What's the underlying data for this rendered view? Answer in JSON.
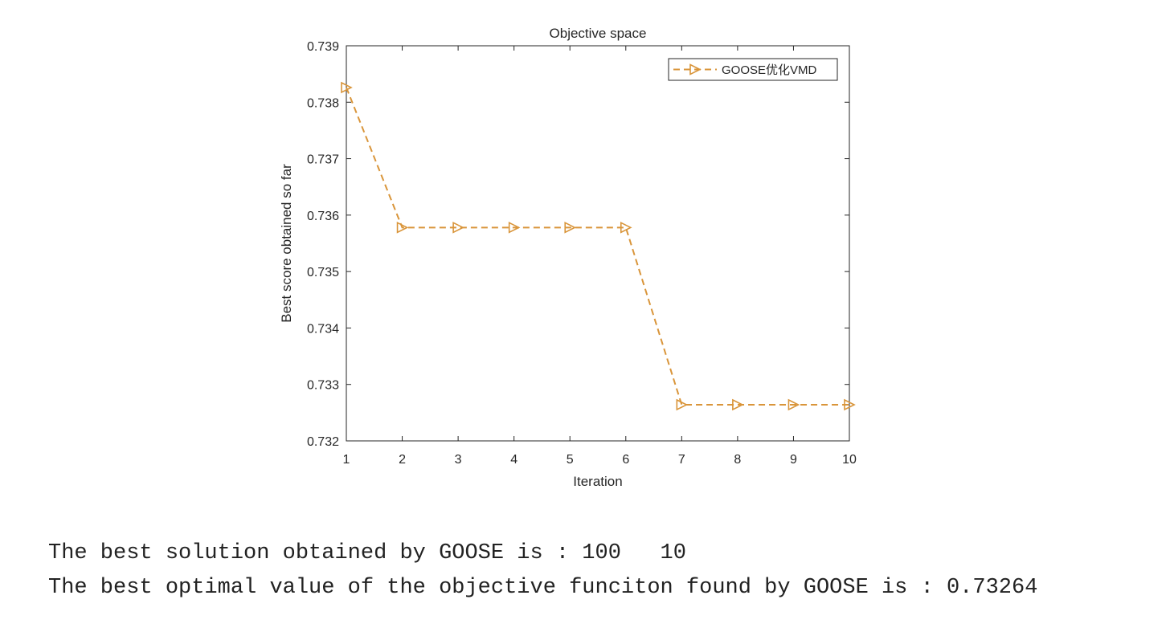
{
  "chart_data": {
    "type": "line",
    "title": "Objective space",
    "xlabel": "Iteration",
    "ylabel": "Best score obtained so far",
    "xlim": [
      1,
      10
    ],
    "ylim": [
      0.732,
      0.739
    ],
    "xticks": [
      "1",
      "2",
      "3",
      "4",
      "5",
      "6",
      "7",
      "8",
      "9",
      "10"
    ],
    "yticks": [
      "0.732",
      "0.733",
      "0.734",
      "0.735",
      "0.736",
      "0.737",
      "0.738",
      "0.739"
    ],
    "grid": false,
    "legend_position": "top-right",
    "series": [
      {
        "name": "GOOSE优化VMD",
        "color": "#D9953A",
        "line_style": "dashed",
        "marker": "right-pointing-triangle",
        "x": [
          1,
          2,
          3,
          4,
          5,
          6,
          7,
          8,
          9,
          10
        ],
        "y": [
          0.73826,
          0.73578,
          0.73578,
          0.73578,
          0.73578,
          0.73578,
          0.73264,
          0.73264,
          0.73264,
          0.73264
        ]
      }
    ]
  },
  "console": {
    "line1": "The best solution obtained by GOOSE is : 100   10",
    "line2": "The best optimal value of the objective funciton found by GOOSE is : 0.73264"
  }
}
